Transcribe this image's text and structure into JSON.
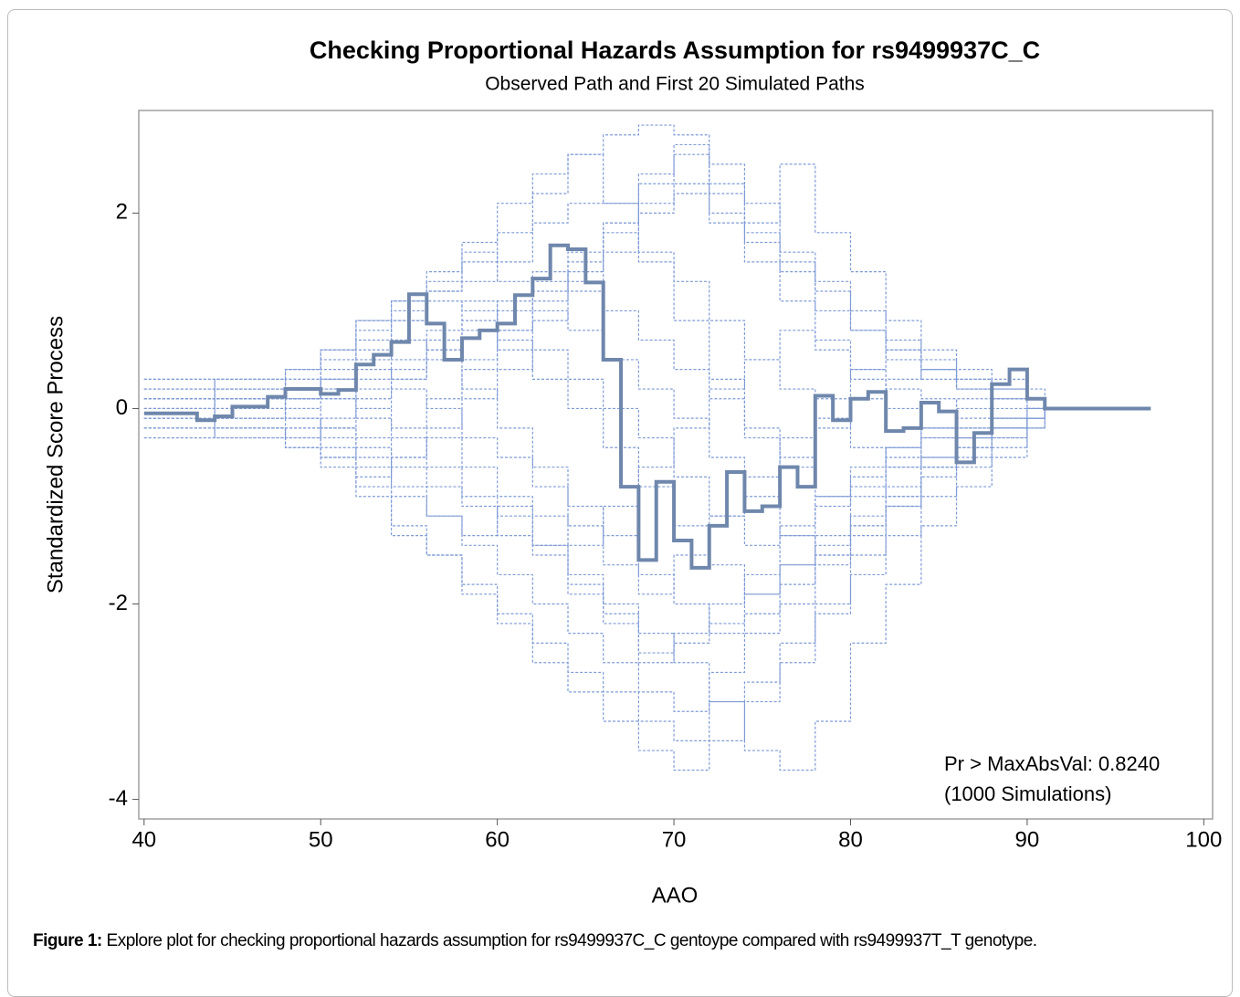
{
  "chart_data": {
    "type": "step",
    "title": "Checking Proportional Hazards Assumption for rs9499937C_C",
    "subtitle": "Observed Path and First 20 Simulated Paths",
    "xlabel": "AAO",
    "ylabel": "Standardized Score Process",
    "annotations": [
      "Pr > MaxAbsVal: 0.8240",
      "(1000 Simulations)"
    ],
    "xlim": [
      39.7,
      100.5
    ],
    "xticks": [
      40,
      50,
      60,
      70,
      80,
      90,
      100
    ],
    "ylim": [
      -4.2,
      3.05
    ],
    "yticks": [
      -4,
      -2,
      0,
      2
    ],
    "observed": {
      "color": "#6f87ac",
      "x": [
        40,
        43,
        44,
        45,
        47,
        48,
        50,
        51,
        52,
        53,
        54,
        55,
        56,
        57,
        58,
        59,
        60,
        61,
        62,
        63,
        64,
        65,
        66,
        67,
        68,
        69,
        70,
        71,
        72,
        73,
        74,
        75,
        76,
        77,
        78,
        79,
        80,
        81,
        82,
        83,
        84,
        85,
        86,
        87,
        88,
        89,
        90,
        91,
        97
      ],
      "values": [
        -0.05,
        -0.12,
        -0.08,
        0.02,
        0.12,
        0.2,
        0.15,
        0.19,
        0.45,
        0.55,
        0.68,
        1.17,
        0.87,
        0.5,
        0.72,
        0.8,
        0.87,
        1.16,
        1.33,
        1.67,
        1.63,
        1.29,
        0.5,
        -0.8,
        -1.55,
        -0.75,
        -1.35,
        -1.63,
        -1.2,
        -0.65,
        -1.05,
        -1.0,
        -0.6,
        -0.8,
        0.13,
        -0.12,
        0.1,
        0.17,
        -0.23,
        -0.2,
        0.06,
        -0.03,
        -0.55,
        -0.25,
        0.25,
        0.4,
        0.1,
        0,
        0
      ]
    },
    "simulated": {
      "color": "#7f9bd6",
      "x": [
        40,
        44,
        48,
        50,
        52,
        54,
        56,
        58,
        60,
        62,
        64,
        66,
        68,
        70,
        72,
        74,
        76,
        78,
        80,
        82,
        84,
        86,
        88,
        90,
        91
      ],
      "paths": [
        [
          0.3,
          0.2,
          0.3,
          0.5,
          0.8,
          1.1,
          1.3,
          1.7,
          2.1,
          2.4,
          2.6,
          2.1,
          1.5,
          0.9,
          0.3,
          -0.2,
          -0.6,
          -0.9,
          -0.7,
          -0.4,
          -0.2,
          0.1,
          0.2,
          0.1,
          0
        ],
        [
          -0.3,
          -0.2,
          -0.4,
          -0.5,
          -0.8,
          -1.2,
          -1.5,
          -1.9,
          -2.2,
          -2.6,
          -2.9,
          -3.2,
          -3.5,
          -3.7,
          -3.4,
          -3.0,
          -2.6,
          -2.1,
          -1.5,
          -1.0,
          -0.6,
          -0.3,
          -0.2,
          -0.1,
          0
        ],
        [
          0.2,
          0.3,
          0.2,
          0.4,
          0.7,
          0.9,
          1.2,
          1.5,
          1.8,
          2.2,
          2.6,
          2.8,
          2.9,
          2.8,
          2.5,
          2.1,
          1.6,
          1.3,
          0.8,
          0.5,
          0.3,
          0.2,
          0.1,
          0.1,
          0
        ],
        [
          -0.2,
          -0.3,
          -0.4,
          -0.6,
          -0.9,
          -1.3,
          -1.5,
          -1.8,
          -2.1,
          -2.4,
          -2.7,
          -2.9,
          -3.2,
          -3.4,
          -3.0,
          -3.5,
          -3.7,
          -3.2,
          -2.4,
          -1.8,
          -1.2,
          -0.8,
          -0.5,
          -0.2,
          0
        ],
        [
          0.1,
          0.2,
          0.4,
          0.6,
          0.9,
          1.0,
          1.2,
          1.3,
          1.5,
          1.9,
          2.1,
          2.1,
          2.4,
          2.7,
          2.3,
          1.9,
          2.5,
          1.8,
          1.4,
          0.9,
          0.6,
          0.4,
          0.3,
          0.2,
          0
        ],
        [
          -0.1,
          -0.1,
          -0.2,
          -0.4,
          -0.6,
          -0.9,
          -1.1,
          -1.4,
          -1.7,
          -2.0,
          -2.3,
          -2.6,
          -2.9,
          -3.1,
          -2.7,
          -2.3,
          -2.0,
          -1.6,
          -1.3,
          -1.0,
          -0.7,
          -0.5,
          -0.3,
          -0.1,
          0
        ],
        [
          0.0,
          0.1,
          0.1,
          0.2,
          0.4,
          0.3,
          0.6,
          0.8,
          1.0,
          1.3,
          1.6,
          1.9,
          2.1,
          2.2,
          2.0,
          1.7,
          1.4,
          1.0,
          0.8,
          0.6,
          0.4,
          0.2,
          0.1,
          0.0,
          0
        ],
        [
          0.1,
          0.0,
          -0.1,
          -0.2,
          -0.4,
          -0.6,
          -0.8,
          -1.0,
          -1.3,
          -1.5,
          -1.9,
          -2.2,
          -2.5,
          -2.4,
          -2.2,
          -1.9,
          -1.6,
          -1.4,
          -1.1,
          -0.9,
          -0.6,
          -0.4,
          -0.2,
          -0.1,
          0
        ],
        [
          0.2,
          0.1,
          0.1,
          0.3,
          0.5,
          0.7,
          0.6,
          0.9,
          1.1,
          1.4,
          1.2,
          1.0,
          0.7,
          0.4,
          0.1,
          -0.3,
          -0.5,
          -0.2,
          0.1,
          0.3,
          0.4,
          0.3,
          0.2,
          0.1,
          0
        ],
        [
          -0.2,
          -0.1,
          0.0,
          -0.2,
          -0.3,
          -0.5,
          -0.3,
          -0.6,
          -0.9,
          -1.1,
          -1.4,
          -1.0,
          -0.6,
          -0.2,
          0.2,
          0.5,
          0.8,
          0.6,
          0.4,
          0.2,
          0.1,
          0.0,
          -0.1,
          0.0,
          0
        ],
        [
          0.3,
          0.3,
          0.4,
          0.6,
          0.9,
          1.1,
          1.4,
          1.6,
          1.3,
          1.0,
          0.8,
          0.5,
          0.2,
          -0.1,
          -0.5,
          -0.9,
          -1.3,
          -1.5,
          -1.2,
          -0.9,
          -0.6,
          -0.4,
          -0.3,
          -0.1,
          0
        ],
        [
          -0.3,
          -0.3,
          -0.2,
          -0.1,
          0.1,
          0.3,
          0.5,
          0.2,
          -0.2,
          -0.6,
          -1.0,
          -1.3,
          -1.7,
          -2.0,
          -2.3,
          -2.1,
          -1.8,
          -1.5,
          -1.2,
          -0.8,
          -0.5,
          -0.3,
          -0.2,
          -0.1,
          0
        ],
        [
          0.1,
          0.2,
          0.3,
          0.2,
          0.0,
          -0.2,
          0.1,
          0.4,
          0.8,
          1.2,
          1.5,
          1.9,
          2.3,
          2.6,
          2.2,
          1.8,
          1.5,
          1.2,
          1.0,
          0.7,
          0.5,
          0.3,
          0.2,
          0.1,
          0
        ],
        [
          -0.1,
          -0.2,
          -0.3,
          -0.2,
          0.0,
          0.2,
          0.0,
          -0.3,
          -0.5,
          -0.8,
          -1.2,
          -1.6,
          -1.9,
          -1.5,
          -1.1,
          -0.7,
          -0.3,
          0.1,
          0.4,
          0.6,
          0.4,
          0.2,
          0.1,
          0.0,
          0
        ],
        [
          0.2,
          0.2,
          0.0,
          0.1,
          0.3,
          0.5,
          0.8,
          1.1,
          0.7,
          0.3,
          0.0,
          -0.4,
          -0.8,
          -1.2,
          -1.6,
          -1.9,
          -1.6,
          -1.3,
          -0.9,
          -0.6,
          -0.3,
          -0.2,
          -0.1,
          0.0,
          0
        ],
        [
          0.0,
          -0.1,
          0.1,
          0.3,
          0.2,
          0.4,
          0.7,
          0.5,
          0.8,
          1.1,
          1.4,
          1.8,
          1.6,
          1.3,
          0.9,
          0.5,
          0.2,
          -0.1,
          -0.4,
          -0.6,
          -0.5,
          -0.3,
          -0.2,
          -0.1,
          0
        ],
        [
          -0.2,
          -0.2,
          -0.3,
          -0.5,
          -0.7,
          -0.5,
          -0.2,
          0.1,
          0.4,
          0.6,
          0.3,
          0.0,
          -0.3,
          -0.7,
          -1.1,
          -1.4,
          -1.2,
          -0.9,
          -0.6,
          -0.4,
          -0.2,
          -0.1,
          0.0,
          0.0,
          0
        ],
        [
          0.1,
          0.1,
          0.2,
          0.1,
          -0.1,
          -0.3,
          -0.6,
          -0.9,
          -1.1,
          -1.4,
          -1.7,
          -2.0,
          -2.3,
          -2.6,
          -3.0,
          -2.8,
          -2.4,
          -2.0,
          -1.7,
          -1.3,
          -0.9,
          -0.6,
          -0.4,
          -0.2,
          0
        ],
        [
          -0.1,
          0.0,
          0.1,
          0.3,
          0.6,
          0.9,
          1.1,
          1.0,
          0.6,
          0.9,
          1.3,
          1.6,
          2.0,
          2.3,
          1.9,
          1.5,
          1.1,
          0.7,
          0.3,
          0.0,
          -0.2,
          -0.3,
          -0.2,
          -0.1,
          0
        ],
        [
          0.0,
          0.1,
          -0.1,
          -0.3,
          -0.5,
          -0.8,
          -1.1,
          -1.3,
          -1.0,
          -1.4,
          -1.8,
          -2.1,
          -2.6,
          -2.3,
          -2.0,
          -1.7,
          -1.3,
          -1.0,
          -0.8,
          -0.5,
          -0.3,
          -0.2,
          -0.1,
          0.0,
          0
        ]
      ]
    }
  },
  "caption": {
    "label": "Figure 1:",
    "text": "Explore plot for checking proportional hazards assumption for rs9499937C_C gentoype compared with rs9499937T_T genotype."
  }
}
